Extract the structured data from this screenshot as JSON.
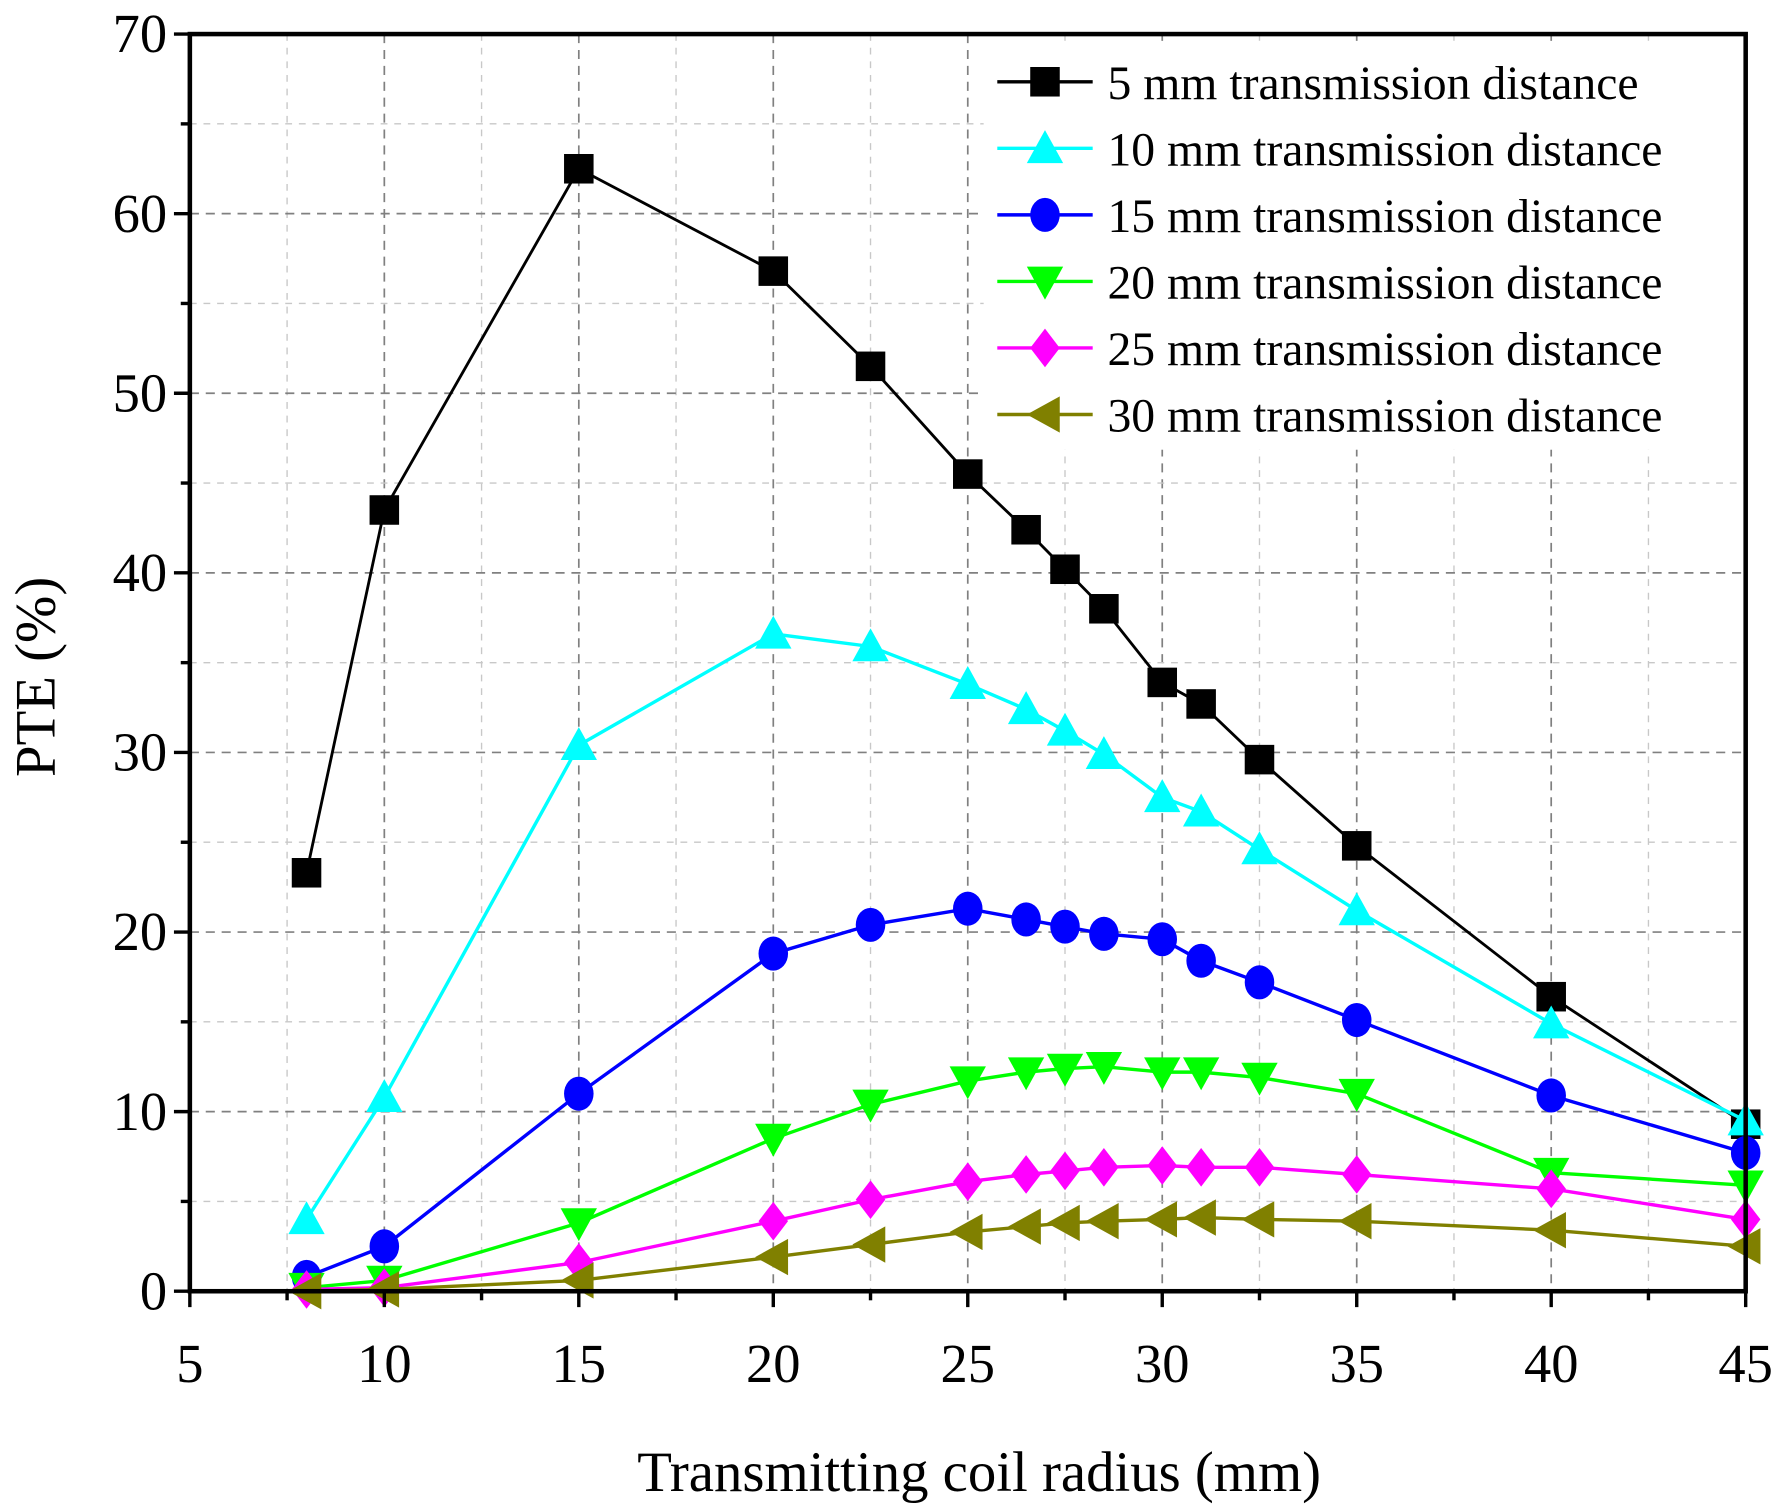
{
  "chart_data": {
    "type": "line",
    "xlabel": "Transmitting coil radius (mm)",
    "ylabel": "PTE (%)",
    "xlim": [
      5,
      45
    ],
    "ylim": [
      0,
      70
    ],
    "xticks": [
      "5",
      "10",
      "15",
      "20",
      "25",
      "30",
      "35",
      "40",
      "45"
    ],
    "yticks": [
      "0",
      "10",
      "20",
      "30",
      "40",
      "50",
      "60",
      "70"
    ],
    "grid": true,
    "legend_position": "top-right",
    "x": [
      8,
      10,
      15,
      20,
      22.5,
      25,
      26.5,
      27.5,
      28.5,
      30,
      31,
      32.5,
      35,
      40,
      45
    ],
    "series": [
      {
        "name": "5 mm transmission distance",
        "color": "#000000",
        "marker": "square",
        "values": [
          23.3,
          43.5,
          62.5,
          56.8,
          51.5,
          45.5,
          42.4,
          40.2,
          38.0,
          33.9,
          32.7,
          29.6,
          24.8,
          16.4,
          9.3
        ]
      },
      {
        "name": "10 mm transmission distance",
        "color": "#00FFFF",
        "marker": "triangle-up",
        "values": [
          4.0,
          10.8,
          30.4,
          36.6,
          35.9,
          33.8,
          32.4,
          31.2,
          29.9,
          27.5,
          26.7,
          24.6,
          21.2,
          14.9,
          9.5
        ]
      },
      {
        "name": "15 mm transmission distance",
        "color": "#0000FF",
        "marker": "circle",
        "values": [
          0.8,
          2.5,
          11.0,
          18.8,
          20.4,
          21.3,
          20.7,
          20.3,
          19.9,
          19.6,
          18.4,
          17.2,
          15.1,
          10.9,
          7.7
        ]
      },
      {
        "name": "20 mm transmission distance",
        "color": "#00FF00",
        "marker": "triangle-down",
        "values": [
          0.2,
          0.6,
          3.8,
          8.5,
          10.4,
          11.7,
          12.2,
          12.4,
          12.5,
          12.2,
          12.2,
          11.9,
          11.0,
          6.6,
          5.9
        ]
      },
      {
        "name": "25 mm transmission distance",
        "color": "#FF00FF",
        "marker": "diamond",
        "values": [
          0.1,
          0.2,
          1.6,
          3.9,
          5.1,
          6.1,
          6.5,
          6.7,
          6.9,
          7.0,
          6.9,
          6.9,
          6.5,
          5.7,
          4.0
        ]
      },
      {
        "name": "30 mm transmission distance",
        "color": "#808000",
        "marker": "triangle-left",
        "values": [
          0.0,
          0.1,
          0.6,
          1.9,
          2.6,
          3.3,
          3.6,
          3.8,
          3.9,
          4.0,
          4.1,
          4.0,
          3.9,
          3.4,
          2.5
        ]
      }
    ]
  }
}
